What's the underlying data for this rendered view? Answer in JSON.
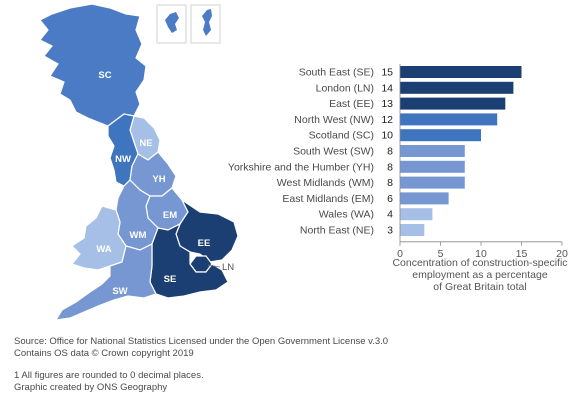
{
  "chart_data": [
    {
      "type": "bar",
      "orientation": "horizontal",
      "categories": [
        "South East (SE)",
        "London (LN)",
        "East (EE)",
        "North West (NW)",
        "Scotland (SC)",
        "South West (SW)",
        "Yorkshire and the Humber (YH)",
        "West Midlands (WM)",
        "East Midlands (EM)",
        "Wales (WA)",
        "North East (NE)"
      ],
      "values": [
        15,
        14,
        13,
        12,
        10,
        8,
        8,
        8,
        6,
        4,
        3
      ],
      "bar_colors": [
        "#1c3f73",
        "#1c3f73",
        "#1c3f73",
        "#3f74bf",
        "#3f74bf",
        "#7797d2",
        "#7797d2",
        "#7797d2",
        "#7797d2",
        "#a6bfe6",
        "#a6bfe6"
      ],
      "xlim": [
        0,
        20
      ],
      "x_ticks": [
        0,
        5,
        10,
        15,
        20
      ],
      "xlabel_lines": [
        "Concentration of construction-specific",
        "employment as a percentage",
        "of Great Britain total"
      ],
      "grid": false,
      "legend": "none"
    },
    {
      "type": "choropleth",
      "regions": [
        {
          "code": "SC",
          "color": "#4a7bc4"
        },
        {
          "code": "NE",
          "color": "#a6bfe6"
        },
        {
          "code": "NW",
          "color": "#3f74bf"
        },
        {
          "code": "YH",
          "color": "#7797d2"
        },
        {
          "code": "EM",
          "color": "#7797d2"
        },
        {
          "code": "WM",
          "color": "#7797d2"
        },
        {
          "code": "WA",
          "color": "#a6bfe6"
        },
        {
          "code": "EE",
          "color": "#1c3f73"
        },
        {
          "code": "LN",
          "color": "#1c3f73"
        },
        {
          "code": "SE",
          "color": "#1c3f73"
        },
        {
          "code": "SW",
          "color": "#7797d2"
        }
      ]
    }
  ],
  "footer": {
    "source_line1": "Source: Office for National Statistics Licensed under the Open Government License v.3.0",
    "source_line2": "Contains OS data © Crown copyright 2019",
    "note_line1": "1  All figures are rounded to 0 decimal places.",
    "note_line2": "Graphic created by ONS Geography"
  }
}
